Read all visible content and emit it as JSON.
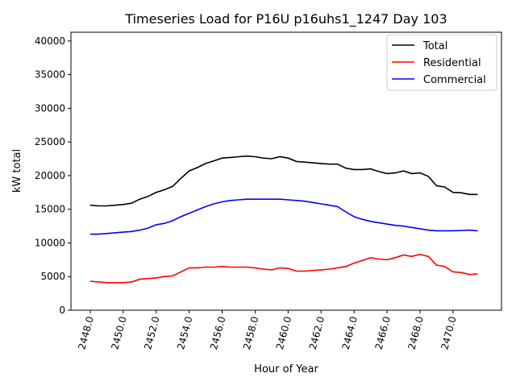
{
  "chart_data": {
    "type": "line",
    "title": "Timeseries Load for P16U p16uhs1_1247  Day 103",
    "xlabel": "Hour of Year",
    "ylabel": "kW total",
    "xlim": [
      2446.83,
      2472.94
    ],
    "ylim": [
      0,
      41300
    ],
    "xticks": [
      2448,
      2450,
      2452,
      2454,
      2456,
      2458,
      2460,
      2462,
      2464,
      2466,
      2468,
      2470
    ],
    "xtick_labels": [
      "2448.0",
      "2450.0",
      "2452.0",
      "2454.0",
      "2456.0",
      "2458.0",
      "2460.0",
      "2462.0",
      "2464.0",
      "2466.0",
      "2468.0",
      "2470.0"
    ],
    "yticks": [
      0,
      5000,
      10000,
      15000,
      20000,
      25000,
      30000,
      35000,
      40000
    ],
    "ytick_labels": [
      "0",
      "5000",
      "10000",
      "15000",
      "20000",
      "25000",
      "30000",
      "35000",
      "40000"
    ],
    "grid": false,
    "legend_position": "top-right",
    "x_start": 2448,
    "x_step": 0.5,
    "series": [
      {
        "name": "Total",
        "color": "#000000",
        "values": [
          15600,
          15500,
          15500,
          15600,
          15700,
          15900,
          16500,
          16900,
          17500,
          17900,
          18400,
          19600,
          20700,
          21200,
          21800,
          22200,
          22600,
          22700,
          22800,
          22900,
          22800,
          22600,
          22500,
          22800,
          22600,
          22100,
          22000,
          21900,
          21800,
          21700,
          21700,
          21100,
          20900,
          20900,
          21000,
          20600,
          20300,
          20400,
          20700,
          20300,
          20400,
          19900,
          18500,
          18300,
          17500,
          17450,
          17200,
          17200
        ]
      },
      {
        "name": "Residential",
        "color": "#ff0000",
        "values": [
          4300,
          4200,
          4100,
          4100,
          4100,
          4200,
          4600,
          4700,
          4800,
          5000,
          5100,
          5700,
          6300,
          6300,
          6400,
          6400,
          6500,
          6400,
          6400,
          6400,
          6300,
          6100,
          6000,
          6300,
          6200,
          5800,
          5800,
          5900,
          6000,
          6100,
          6300,
          6500,
          7000,
          7400,
          7800,
          7600,
          7500,
          7800,
          8200,
          8000,
          8300,
          8000,
          6700,
          6500,
          5700,
          5600,
          5300,
          5400
        ]
      },
      {
        "name": "Commercial",
        "color": "#0000ff",
        "values": [
          11300,
          11300,
          11400,
          11500,
          11600,
          11700,
          11900,
          12200,
          12700,
          12900,
          13300,
          13900,
          14400,
          14900,
          15400,
          15800,
          16100,
          16300,
          16400,
          16500,
          16500,
          16500,
          16500,
          16500,
          16400,
          16300,
          16200,
          16000,
          15800,
          15600,
          15400,
          14600,
          13900,
          13500,
          13200,
          13000,
          12800,
          12600,
          12500,
          12300,
          12100,
          11900,
          11800,
          11800,
          11800,
          11850,
          11900,
          11800
        ]
      }
    ]
  }
}
